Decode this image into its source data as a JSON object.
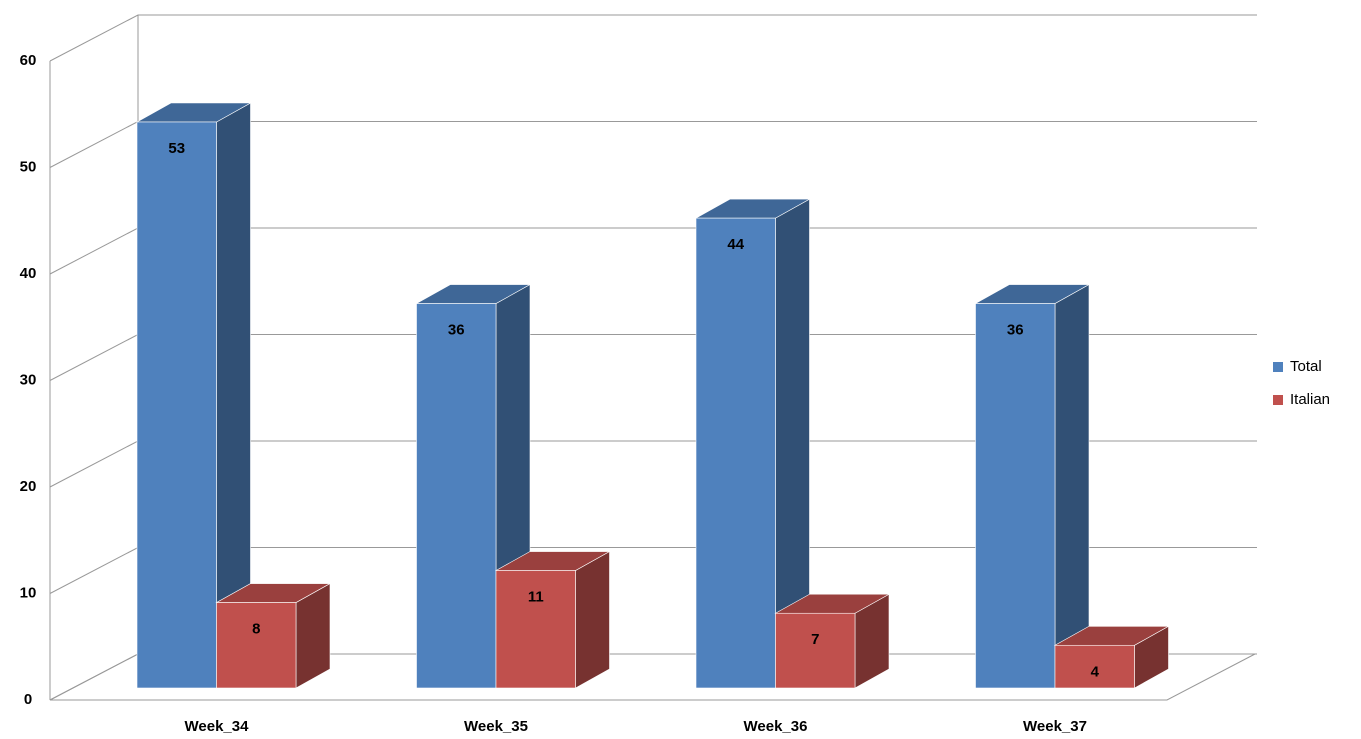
{
  "chart_data": {
    "type": "bar3d",
    "categories": [
      "Week_34",
      "Week_35",
      "Week_36",
      "Week_37"
    ],
    "series": [
      {
        "name": "Total",
        "color": "#4f81bd",
        "values": [
          53,
          36,
          44,
          36
        ]
      },
      {
        "name": "Italian",
        "color": "#c0504d",
        "values": [
          8,
          11,
          7,
          4
        ]
      }
    ],
    "ylim": [
      0,
      60
    ],
    "yticks": [
      0,
      10,
      20,
      30,
      40,
      50,
      60
    ],
    "grid": true,
    "legend": "right"
  }
}
